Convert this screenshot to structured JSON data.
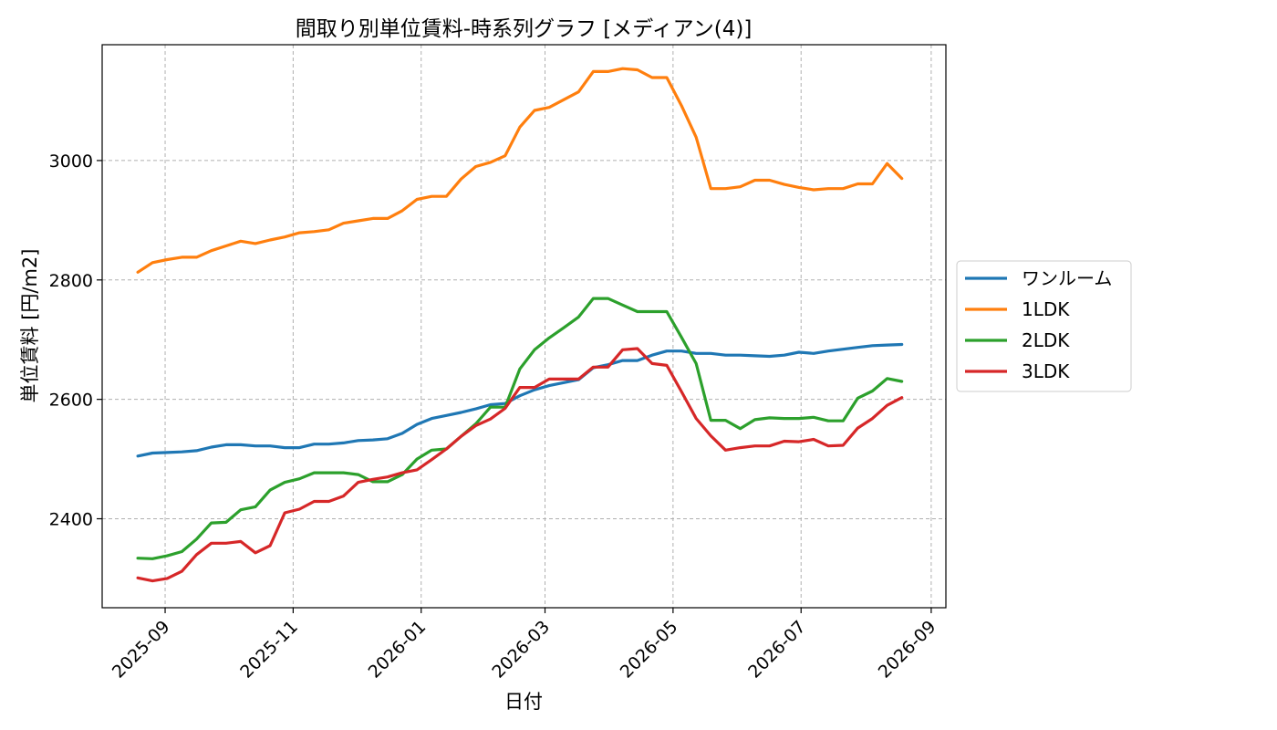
{
  "chart_data": {
    "type": "line",
    "title": "間取り別単位賃料-時系列グラフ [メディアン(4)]",
    "xlabel": "日付",
    "ylabel": "単位賃料 [円/m2]",
    "x_axis_type": "date",
    "xlim": [
      "2025-08-02",
      "2026-09-08"
    ],
    "ylim": [
      2251,
      3194
    ],
    "x_ticks": [
      "2025-09-01",
      "2025-11-01",
      "2026-01-01",
      "2026-03-01",
      "2026-05-01",
      "2026-07-01",
      "2026-09-01"
    ],
    "x_tick_labels": [
      "2025-09",
      "2025-11",
      "2026-01",
      "2026-03",
      "2026-05",
      "2026-07",
      "2026-09"
    ],
    "y_ticks": [
      2400,
      2600,
      2800,
      3000
    ],
    "grid": true,
    "legend_position": "center-right-outside",
    "series": [
      {
        "name": "ワンルーム",
        "color": "#1f77b4",
        "x": [
          "2025-08-19",
          "2025-08-26",
          "2025-09-02",
          "2025-09-09",
          "2025-09-16",
          "2025-09-23",
          "2025-09-30",
          "2025-10-07",
          "2025-10-14",
          "2025-10-21",
          "2025-10-28",
          "2025-11-04",
          "2025-11-11",
          "2025-11-18",
          "2025-11-25",
          "2025-12-02",
          "2025-12-09",
          "2025-12-16",
          "2025-12-23",
          "2025-12-30",
          "2026-01-06",
          "2026-01-13",
          "2026-01-20",
          "2026-01-27",
          "2026-02-03",
          "2026-02-10",
          "2026-02-17",
          "2026-02-24",
          "2026-03-03",
          "2026-03-10",
          "2026-03-17",
          "2026-03-24",
          "2026-03-31",
          "2026-04-07",
          "2026-04-14",
          "2026-04-21",
          "2026-04-28",
          "2026-05-05",
          "2026-05-12",
          "2026-05-19",
          "2026-05-26",
          "2026-06-02",
          "2026-06-09",
          "2026-06-16",
          "2026-06-23",
          "2026-06-30",
          "2026-07-07",
          "2026-07-14",
          "2026-07-21",
          "2026-07-28",
          "2026-08-04",
          "2026-08-11",
          "2026-08-18"
        ],
        "y": [
          2505,
          2510,
          2511,
          2512,
          2514,
          2520,
          2524,
          2524,
          2522,
          2522,
          2519,
          2519,
          2525,
          2525,
          2527,
          2531,
          2532,
          2534,
          2543,
          2558,
          2568,
          2573,
          2578,
          2584,
          2591,
          2593,
          2606,
          2616,
          2623,
          2628,
          2633,
          2653,
          2658,
          2665,
          2665,
          2674,
          2681,
          2681,
          2677,
          2677,
          2674,
          2674,
          2673,
          2672,
          2674,
          2679,
          2677,
          2681,
          2684,
          2687,
          2690,
          2691,
          2692
        ]
      },
      {
        "name": "1LDK",
        "color": "#ff7f0e",
        "x": [
          "2025-08-19",
          "2025-08-26",
          "2025-09-02",
          "2025-09-09",
          "2025-09-16",
          "2025-09-23",
          "2025-09-30",
          "2025-10-07",
          "2025-10-14",
          "2025-10-21",
          "2025-10-28",
          "2025-11-04",
          "2025-11-11",
          "2025-11-18",
          "2025-11-25",
          "2025-12-02",
          "2025-12-09",
          "2025-12-16",
          "2025-12-23",
          "2025-12-30",
          "2026-01-06",
          "2026-01-13",
          "2026-01-20",
          "2026-01-27",
          "2026-02-03",
          "2026-02-10",
          "2026-02-17",
          "2026-02-24",
          "2026-03-03",
          "2026-03-10",
          "2026-03-17",
          "2026-03-24",
          "2026-03-31",
          "2026-04-07",
          "2026-04-14",
          "2026-04-21",
          "2026-04-28",
          "2026-05-05",
          "2026-05-12",
          "2026-05-19",
          "2026-05-26",
          "2026-06-02",
          "2026-06-09",
          "2026-06-16",
          "2026-06-23",
          "2026-06-30",
          "2026-07-07",
          "2026-07-14",
          "2026-07-21",
          "2026-07-28",
          "2026-08-04",
          "2026-08-11",
          "2026-08-18"
        ],
        "y": [
          2813,
          2829,
          2834,
          2838,
          2838,
          2849,
          2857,
          2865,
          2861,
          2867,
          2872,
          2879,
          2881,
          2884,
          2895,
          2899,
          2903,
          2903,
          2916,
          2935,
          2940,
          2940,
          2969,
          2990,
          2997,
          3008,
          3056,
          3084,
          3089,
          3102,
          3115,
          3149,
          3149,
          3154,
          3152,
          3139,
          3139,
          3092,
          3039,
          2953,
          2953,
          2956,
          2967,
          2967,
          2960,
          2955,
          2951,
          2953,
          2953,
          2961,
          2961,
          2995,
          2970
        ]
      },
      {
        "name": "2LDK",
        "color": "#2ca02c",
        "x": [
          "2025-08-19",
          "2025-08-26",
          "2025-09-02",
          "2025-09-09",
          "2025-09-16",
          "2025-09-23",
          "2025-09-30",
          "2025-10-07",
          "2025-10-14",
          "2025-10-21",
          "2025-10-28",
          "2025-11-04",
          "2025-11-11",
          "2025-11-18",
          "2025-11-25",
          "2025-12-02",
          "2025-12-09",
          "2025-12-16",
          "2025-12-23",
          "2025-12-30",
          "2026-01-06",
          "2026-01-13",
          "2026-01-20",
          "2026-01-27",
          "2026-02-03",
          "2026-02-10",
          "2026-02-17",
          "2026-02-24",
          "2026-03-03",
          "2026-03-10",
          "2026-03-17",
          "2026-03-24",
          "2026-03-31",
          "2026-04-07",
          "2026-04-14",
          "2026-04-21",
          "2026-04-28",
          "2026-05-05",
          "2026-05-12",
          "2026-05-19",
          "2026-05-26",
          "2026-06-02",
          "2026-06-09",
          "2026-06-16",
          "2026-06-23",
          "2026-06-30",
          "2026-07-07",
          "2026-07-14",
          "2026-07-21",
          "2026-07-28",
          "2026-08-04",
          "2026-08-11",
          "2026-08-18"
        ],
        "y": [
          2334,
          2333,
          2338,
          2345,
          2366,
          2393,
          2394,
          2415,
          2420,
          2448,
          2461,
          2467,
          2477,
          2477,
          2477,
          2474,
          2462,
          2462,
          2474,
          2500,
          2515,
          2517,
          2538,
          2559,
          2587,
          2587,
          2651,
          2683,
          2703,
          2720,
          2738,
          2769,
          2769,
          2758,
          2747,
          2747,
          2747,
          2704,
          2660,
          2565,
          2565,
          2551,
          2566,
          2569,
          2568,
          2568,
          2570,
          2564,
          2564,
          2602,
          2614,
          2635,
          2630
        ]
      },
      {
        "name": "3LDK",
        "color": "#d62728",
        "x": [
          "2025-08-19",
          "2025-08-26",
          "2025-09-02",
          "2025-09-09",
          "2025-09-16",
          "2025-09-23",
          "2025-09-30",
          "2025-10-07",
          "2025-10-14",
          "2025-10-21",
          "2025-10-28",
          "2025-11-04",
          "2025-11-11",
          "2025-11-18",
          "2025-11-25",
          "2025-12-02",
          "2025-12-09",
          "2025-12-16",
          "2025-12-23",
          "2025-12-30",
          "2026-01-06",
          "2026-01-13",
          "2026-01-20",
          "2026-01-27",
          "2026-02-03",
          "2026-02-10",
          "2026-02-17",
          "2026-02-24",
          "2026-03-03",
          "2026-03-10",
          "2026-03-17",
          "2026-03-24",
          "2026-03-31",
          "2026-04-07",
          "2026-04-14",
          "2026-04-21",
          "2026-04-28",
          "2026-05-05",
          "2026-05-12",
          "2026-05-19",
          "2026-05-26",
          "2026-06-02",
          "2026-06-09",
          "2026-06-16",
          "2026-06-23",
          "2026-06-30",
          "2026-07-07",
          "2026-07-14",
          "2026-07-21",
          "2026-07-28",
          "2026-08-04",
          "2026-08-11",
          "2026-08-18"
        ],
        "y": [
          2301,
          2296,
          2300,
          2312,
          2340,
          2359,
          2359,
          2362,
          2343,
          2355,
          2410,
          2416,
          2429,
          2429,
          2438,
          2461,
          2466,
          2470,
          2477,
          2482,
          2499,
          2517,
          2538,
          2556,
          2567,
          2585,
          2620,
          2620,
          2634,
          2634,
          2634,
          2654,
          2654,
          2683,
          2685,
          2660,
          2657,
          2613,
          2568,
          2539,
          2515,
          2519,
          2522,
          2522,
          2530,
          2529,
          2533,
          2522,
          2523,
          2552,
          2568,
          2590,
          2603
        ]
      }
    ]
  }
}
